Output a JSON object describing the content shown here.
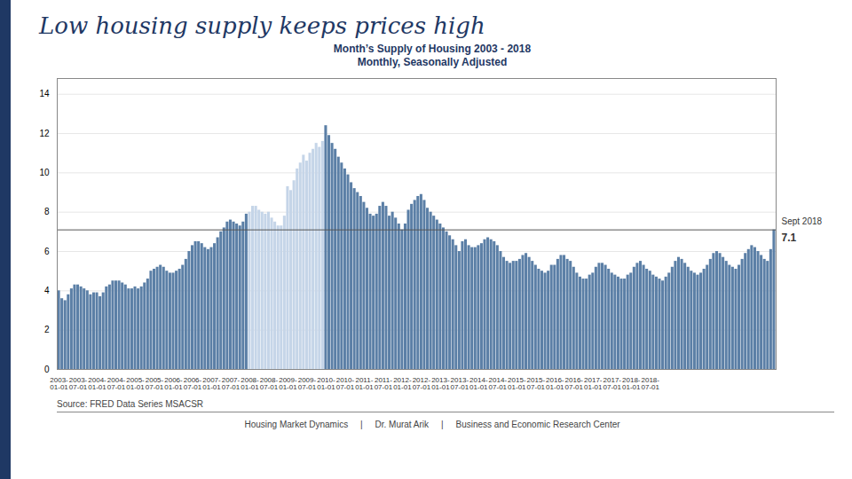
{
  "chart_data": {
    "type": "bar",
    "title": "Low housing supply keeps prices high",
    "subtitle": [
      "Month’s Supply of Housing 2003 - 2018",
      "Monthly, Seasonally Adjusted"
    ],
    "source": "Source: FRED Data Series MSACSR",
    "footer": "Housing Market Dynamics     |     Dr. Murat Arik     |     Business and Economic Research Center",
    "categories": [
      "2003-\n01-01",
      null,
      null,
      null,
      null,
      null,
      "2003-\n07-01",
      null,
      null,
      null,
      null,
      null,
      "2004-\n01-01",
      null,
      null,
      null,
      null,
      null,
      "2004-\n07-01",
      null,
      null,
      null,
      null,
      null,
      "2005-\n01-01",
      null,
      null,
      null,
      null,
      null,
      "2005-\n07-01",
      null,
      null,
      null,
      null,
      null,
      "2006-\n01-01",
      null,
      null,
      null,
      null,
      null,
      "2006-\n07-01",
      null,
      null,
      null,
      null,
      null,
      "2007-\n01-01",
      null,
      null,
      null,
      null,
      null,
      "2007-\n07-01",
      null,
      null,
      null,
      null,
      null,
      "2008-\n01-01",
      null,
      null,
      null,
      null,
      null,
      "2008-\n07-01",
      null,
      null,
      null,
      null,
      null,
      "2009-\n01-01",
      null,
      null,
      null,
      null,
      null,
      "2009-\n07-01",
      null,
      null,
      null,
      null,
      null,
      "2010-\n01-01",
      null,
      null,
      null,
      null,
      null,
      "2010-\n07-01",
      null,
      null,
      null,
      null,
      null,
      "2011-\n01-01",
      null,
      null,
      null,
      null,
      null,
      "2011-\n07-01",
      null,
      null,
      null,
      null,
      null,
      "2012-\n01-01",
      null,
      null,
      null,
      null,
      null,
      "2012-\n07-01",
      null,
      null,
      null,
      null,
      null,
      "2013-\n01-01",
      null,
      null,
      null,
      null,
      null,
      "2013-\n07-01",
      null,
      null,
      null,
      null,
      null,
      "2014-\n01-01",
      null,
      null,
      null,
      null,
      null,
      "2014-\n07-01",
      null,
      null,
      null,
      null,
      null,
      "2015-\n01-01",
      null,
      null,
      null,
      null,
      null,
      "2015-\n07-01",
      null,
      null,
      null,
      null,
      null,
      "2016-\n01-01",
      null,
      null,
      null,
      null,
      null,
      "2016-\n07-01",
      null,
      null,
      null,
      null,
      null,
      "2017-\n01-01",
      null,
      null,
      null,
      null,
      null,
      "2017-\n07-01",
      null,
      null,
      null,
      null,
      null,
      "2018-\n01-01",
      null,
      null,
      null,
      null,
      null,
      "2018-\n07-01",
      null,
      null,
      null,
      null,
      null,
      null,
      null,
      null,
      null,
      null,
      null,
      null,
      null,
      null,
      null,
      null,
      null,
      null,
      null,
      null,
      null,
      null,
      null,
      null,
      null,
      null,
      null,
      null,
      null,
      null,
      null,
      null,
      null,
      null,
      null,
      null,
      null,
      null,
      null
    ],
    "values": [
      4.0,
      3.6,
      3.5,
      3.8,
      4.1,
      4.3,
      4.3,
      4.2,
      4.1,
      4.0,
      3.8,
      3.9,
      3.9,
      3.7,
      3.9,
      4.2,
      4.3,
      4.5,
      4.5,
      4.5,
      4.4,
      4.3,
      4.1,
      4.1,
      4.2,
      4.1,
      4.2,
      4.4,
      4.6,
      5.0,
      5.1,
      5.2,
      5.3,
      5.2,
      5.0,
      4.9,
      4.9,
      5.0,
      5.1,
      5.3,
      5.6,
      6.0,
      6.3,
      6.5,
      6.5,
      6.4,
      6.2,
      6.1,
      6.2,
      6.4,
      6.7,
      7.0,
      7.2,
      7.5,
      7.6,
      7.5,
      7.4,
      7.3,
      7.5,
      7.9,
      8.0,
      8.3,
      8.3,
      8.1,
      8.0,
      7.9,
      8.0,
      7.7,
      7.5,
      7.3,
      7.3,
      7.8,
      9.3,
      9.1,
      9.6,
      10.2,
      10.5,
      10.9,
      10.6,
      11.0,
      11.2,
      11.5,
      11.3,
      11.6,
      12.4,
      11.9,
      11.5,
      11.2,
      10.8,
      10.5,
      10.2,
      9.9,
      9.5,
      9.2,
      9.0,
      8.8,
      8.5,
      8.2,
      7.9,
      7.8,
      7.9,
      8.3,
      8.5,
      8.3,
      7.8,
      8.0,
      7.7,
      7.4,
      7.1,
      7.4,
      8.1,
      8.4,
      8.6,
      8.8,
      8.9,
      8.6,
      8.2,
      8.0,
      7.8,
      7.6,
      7.4,
      7.2,
      7.0,
      6.8,
      6.6,
      6.3,
      6.0,
      6.5,
      6.6,
      6.3,
      6.2,
      6.2,
      6.3,
      6.4,
      6.6,
      6.7,
      6.6,
      6.5,
      6.3,
      6.0,
      5.7,
      5.5,
      5.4,
      5.5,
      5.5,
      5.6,
      5.8,
      5.9,
      5.7,
      5.5,
      5.3,
      5.1,
      5.0,
      4.9,
      5.0,
      5.3,
      5.3,
      5.6,
      5.8,
      5.8,
      5.6,
      5.5,
      5.2,
      4.9,
      4.7,
      4.6,
      4.6,
      4.8,
      4.9,
      5.2,
      5.4,
      5.4,
      5.3,
      5.1,
      4.9,
      4.8,
      4.7,
      4.6,
      4.6,
      4.8,
      4.9,
      5.2,
      5.4,
      5.5,
      5.3,
      5.1,
      5.0,
      4.8,
      4.7,
      4.6,
      4.5,
      4.7,
      4.9,
      5.2,
      5.5,
      5.7,
      5.6,
      5.4,
      5.2,
      5.0,
      4.9,
      4.8,
      4.9,
      5.1,
      5.3,
      5.6,
      5.9,
      6.0,
      5.9,
      5.7,
      5.5,
      5.3,
      5.2,
      5.1,
      5.3,
      5.6,
      5.9,
      6.1,
      6.3,
      6.2,
      6.0,
      5.8,
      5.6,
      5.5,
      6.1,
      7.1
    ],
    "colors": [
      "#5b7fa6",
      "#5b7fa6",
      "#5b7fa6",
      "#5b7fa6",
      "#5b7fa6",
      "#5b7fa6",
      "#5b7fa6",
      "#5b7fa6",
      "#5b7fa6",
      "#5b7fa6",
      "#5b7fa6",
      "#5b7fa6",
      "#5b7fa6",
      "#5b7fa6",
      "#5b7fa6",
      "#5b7fa6",
      "#5b7fa6",
      "#5b7fa6",
      "#5b7fa6",
      "#5b7fa6",
      "#5b7fa6",
      "#5b7fa6",
      "#5b7fa6",
      "#5b7fa6",
      "#5b7fa6",
      "#5b7fa6",
      "#5b7fa6",
      "#5b7fa6",
      "#5b7fa6",
      "#5b7fa6",
      "#5b7fa6",
      "#5b7fa6",
      "#5b7fa6",
      "#5b7fa6",
      "#5b7fa6",
      "#5b7fa6",
      "#5b7fa6",
      "#5b7fa6",
      "#5b7fa6",
      "#5b7fa6",
      "#5b7fa6",
      "#5b7fa6",
      "#5b7fa6",
      "#5b7fa6",
      "#5b7fa6",
      "#5b7fa6",
      "#5b7fa6",
      "#5b7fa6",
      "#5b7fa6",
      "#5b7fa6",
      "#5b7fa6",
      "#5b7fa6",
      "#5b7fa6",
      "#5b7fa6",
      "#5b7fa6",
      "#5b7fa6",
      "#5b7fa6",
      "#5b7fa6",
      "#5b7fa6",
      "#5b7fa6",
      "#c5d5e8",
      "#c5d5e8",
      "#c5d5e8",
      "#c5d5e8",
      "#c5d5e8",
      "#c5d5e8",
      "#c5d5e8",
      "#c5d5e8",
      "#c5d5e8",
      "#c5d5e8",
      "#c5d5e8",
      "#c5d5e8",
      "#c5d5e8",
      "#c5d5e8",
      "#c5d5e8",
      "#c5d5e8",
      "#c5d5e8",
      "#c5d5e8",
      "#c5d5e8",
      "#c5d5e8",
      "#c5d5e8",
      "#c5d5e8",
      "#c5d5e8",
      "#c5d5e8",
      "#5b7fa6",
      "#5b7fa6",
      "#5b7fa6",
      "#5b7fa6",
      "#5b7fa6",
      "#5b7fa6",
      "#5b7fa6",
      "#5b7fa6",
      "#5b7fa6",
      "#5b7fa6",
      "#5b7fa6",
      "#5b7fa6",
      "#5b7fa6",
      "#5b7fa6",
      "#5b7fa6",
      "#5b7fa6",
      "#5b7fa6",
      "#5b7fa6",
      "#5b7fa6",
      "#5b7fa6",
      "#5b7fa6",
      "#5b7fa6",
      "#5b7fa6",
      "#5b7fa6",
      "#5b7fa6",
      "#5b7fa6",
      "#5b7fa6",
      "#5b7fa6",
      "#5b7fa6",
      "#5b7fa6",
      "#5b7fa6",
      "#5b7fa6",
      "#5b7fa6",
      "#5b7fa6",
      "#5b7fa6",
      "#5b7fa6",
      "#5b7fa6",
      "#5b7fa6",
      "#5b7fa6",
      "#5b7fa6",
      "#5b7fa6",
      "#5b7fa6",
      "#5b7fa6",
      "#5b7fa6",
      "#5b7fa6",
      "#5b7fa6",
      "#5b7fa6",
      "#5b7fa6",
      "#5b7fa6",
      "#5b7fa6",
      "#5b7fa6",
      "#5b7fa6",
      "#5b7fa6",
      "#5b7fa6",
      "#5b7fa6",
      "#5b7fa6",
      "#5b7fa6",
      "#5b7fa6",
      "#5b7fa6",
      "#5b7fa6",
      "#5b7fa6",
      "#5b7fa6",
      "#5b7fa6",
      "#5b7fa6",
      "#5b7fa6",
      "#5b7fa6",
      "#5b7fa6",
      "#5b7fa6",
      "#5b7fa6",
      "#5b7fa6",
      "#5b7fa6",
      "#5b7fa6",
      "#5b7fa6",
      "#5b7fa6",
      "#5b7fa6",
      "#5b7fa6",
      "#5b7fa6",
      "#5b7fa6",
      "#5b7fa6",
      "#5b7fa6",
      "#5b7fa6",
      "#5b7fa6",
      "#5b7fa6",
      "#5b7fa6",
      "#5b7fa6",
      "#5b7fa6",
      "#5b7fa6",
      "#5b7fa6",
      "#5b7fa6",
      "#5b7fa6",
      "#5b7fa6",
      "#5b7fa6",
      "#5b7fa6",
      "#5b7fa6",
      "#5b7fa6",
      "#5b7fa6",
      "#5b7fa6",
      "#5b7fa6",
      "#5b7fa6",
      "#5b7fa6",
      "#5b7fa6",
      "#5b7fa6",
      "#5b7fa6",
      "#5b7fa6",
      "#5b7fa6",
      "#5b7fa6",
      "#5b7fa6",
      "#5b7fa6",
      "#5b7fa6",
      "#5b7fa6",
      "#5b7fa6",
      "#5b7fa6",
      "#5b7fa6",
      "#5b7fa6",
      "#5b7fa6",
      "#5b7fa6",
      "#5b7fa6",
      "#5b7fa6",
      "#5b7fa6",
      "#5b7fa6",
      "#5b7fa6",
      "#5b7fa6",
      "#5b7fa6",
      "#5b7fa6",
      "#5b7fa6",
      "#5b7fa6",
      "#5b7fa6",
      "#5b7fa6",
      "#5b7fa6",
      "#5b7fa6",
      "#5b7fa6",
      "#5b7fa6",
      "#5b7fa6",
      "#5b7fa6",
      "#5b7fa6",
      "#5b7fa6",
      "#5b7fa6",
      "#5b7fa6",
      "#5b7fa6",
      "#5b7fa6",
      "#5b7fa6",
      "#5b7fa6"
    ],
    "annotations": [
      {
        "y": 7.1,
        "text": "Sept 2018"
      },
      {
        "y": 7.1,
        "text": "7.1"
      }
    ],
    "ylim": [
      0,
      14.8
    ],
    "yticks": [
      0,
      2,
      4,
      6,
      8,
      10,
      12,
      14
    ],
    "grid": true
  }
}
